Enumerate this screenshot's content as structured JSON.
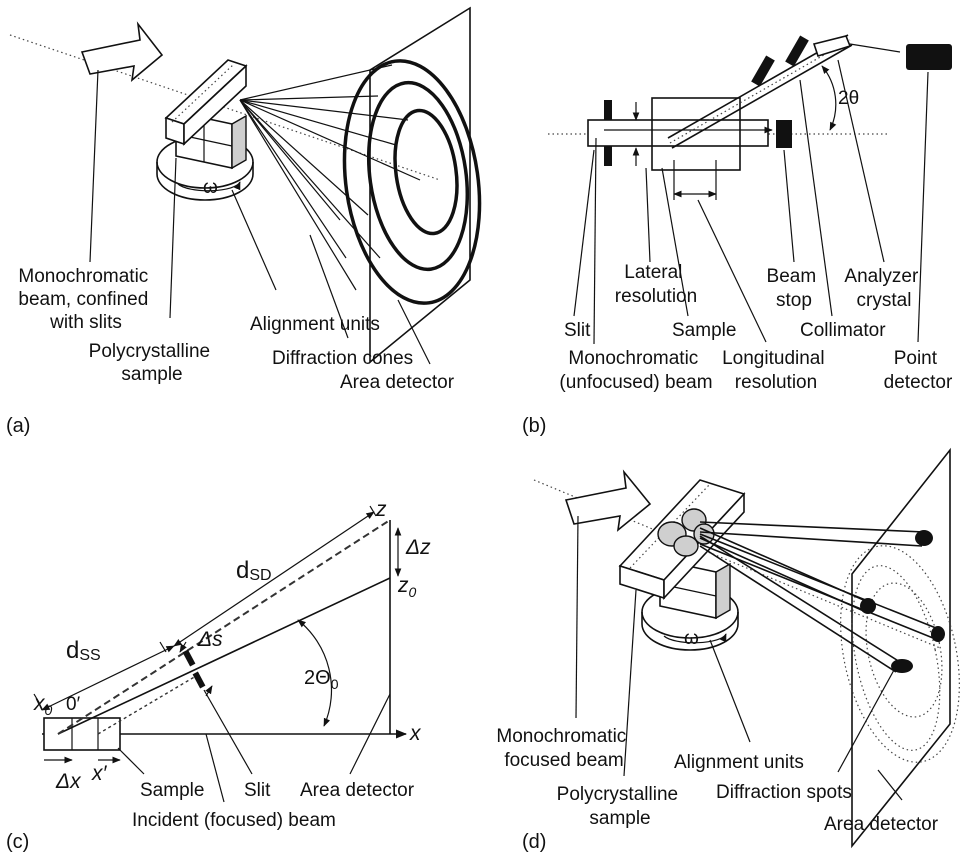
{
  "panels": {
    "a": {
      "panel_label": "(a)",
      "monochromatic_beam": [
        "Monochromatic",
        "beam, confined",
        "with slits"
      ],
      "polycrystalline_sample": [
        "Polycrystalline",
        "sample"
      ],
      "alignment_units": "Alignment units",
      "diffraction_cones": "Diffraction cones",
      "area_detector": "Area detector",
      "omega": "ω"
    },
    "b": {
      "panel_label": "(b)",
      "lateral_resolution": [
        "Lateral",
        "resolution"
      ],
      "beam_stop": [
        "Beam",
        "stop"
      ],
      "analyzer_crystal": [
        "Analyzer",
        "crystal"
      ],
      "slit": "Slit",
      "sample": "Sample",
      "collimator": "Collimator",
      "monochromatic_beam": [
        "Monochromatic",
        "(unfocused) beam"
      ],
      "longitudinal_resolution": [
        "Longitudinal",
        "resolution"
      ],
      "point_detector": [
        "Point",
        "detector"
      ],
      "two_theta": "2θ"
    },
    "c": {
      "panel_label": "(c)",
      "d_ss": "d",
      "d_ss_sub": "SS",
      "d_sd": "d",
      "d_sd_sub": "SD",
      "delta_s": "Δs",
      "delta_z": "Δz",
      "z": "z",
      "z0": "z",
      "z0_sub": "0",
      "x": "x",
      "x0": "x",
      "x0_sub": "0",
      "zero_prime": "0′",
      "delta_x": "Δx",
      "x_prime": "x′",
      "two_theta0": "2Θ",
      "two_theta0_sub": "0",
      "sample": "Sample",
      "slit": "Slit",
      "area_detector": "Area detector",
      "incident_beam": "Incident (focused) beam"
    },
    "d": {
      "panel_label": "(d)",
      "monochromatic_beam": [
        "Monochromatic",
        "focused beam"
      ],
      "polycrystalline_sample": [
        "Polycrystalline",
        "sample"
      ],
      "alignment_units": "Alignment units",
      "diffraction_spots": "Diffraction spots",
      "area_detector": "Area detector",
      "omega": "ω"
    }
  }
}
